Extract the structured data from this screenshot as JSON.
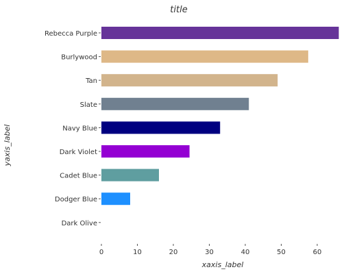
{
  "chart_data": {
    "type": "bar",
    "orientation": "horizontal",
    "title": "title",
    "xlabel": "xaxis_label",
    "ylabel": "yaxis_label",
    "xlim": [
      0,
      68
    ],
    "xticks": [
      0,
      10,
      20,
      30,
      40,
      50,
      60
    ],
    "grid": false,
    "legend": "none",
    "categories": [
      "Dark Olive",
      "Dodger Blue",
      "Cadet Blue",
      "Dark Violet",
      "Navy Blue",
      "Slate",
      "Tan",
      "Burlywood",
      "Rebecca Purple"
    ],
    "values": [
      0,
      8,
      16,
      24.5,
      33,
      41,
      49,
      57.5,
      66
    ],
    "colors": [
      "#556b2f",
      "#1e90ff",
      "#5f9ea0",
      "#9400d3",
      "#000080",
      "#708090",
      "#d2b48c",
      "#deb887",
      "#663399"
    ]
  }
}
